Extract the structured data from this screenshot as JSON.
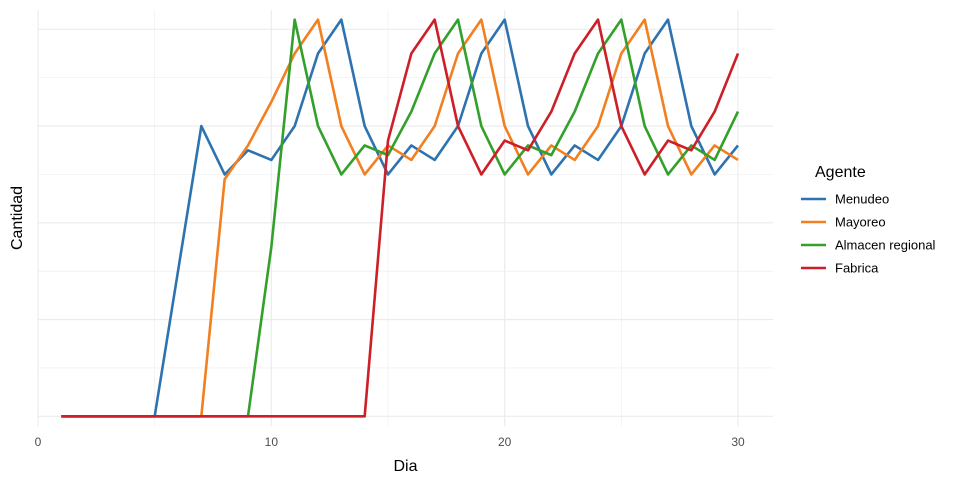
{
  "chart_data": {
    "type": "line",
    "title": "",
    "xlabel": "Dia",
    "ylabel": "Cantidad",
    "xlim": [
      0,
      31.5
    ],
    "ylim": [
      -0.2,
      8.4
    ],
    "x_ticks": [
      0,
      10,
      20,
      30
    ],
    "x_minor_ticks": [
      5,
      15,
      25
    ],
    "y_major_grid": [
      0,
      2,
      4,
      6,
      8
    ],
    "y_minor_grid": [
      1,
      3,
      5,
      7
    ],
    "y_tick_labels_shown": false,
    "grid": true,
    "legend": {
      "title": "Agente",
      "position": "right"
    },
    "x": [
      1,
      2,
      3,
      4,
      5,
      6,
      7,
      8,
      9,
      10,
      11,
      12,
      13,
      14,
      15,
      16,
      17,
      18,
      19,
      20,
      21,
      22,
      23,
      24,
      25,
      26,
      27,
      28,
      29,
      30
    ],
    "series": [
      {
        "name": "Menudeo",
        "color": "#2e73b0",
        "values": [
          0,
          0,
          0,
          0,
          0,
          3,
          6,
          5,
          5.5,
          5.3,
          6,
          7.5,
          8.2,
          6,
          5,
          5.6,
          5.3,
          6,
          7.5,
          8.2,
          6,
          5,
          5.6,
          5.3,
          6,
          7.5,
          8.2,
          6,
          5,
          5.6
        ]
      },
      {
        "name": "Mayoreo",
        "color": "#f27f20",
        "values": [
          0,
          0,
          0,
          0,
          0,
          0,
          0,
          4.9,
          5.6,
          6.5,
          7.5,
          8.2,
          6,
          5,
          5.6,
          5.3,
          6,
          7.5,
          8.2,
          6,
          5,
          5.6,
          5.3,
          6,
          7.5,
          8.2,
          6,
          5,
          5.6,
          5.3
        ]
      },
      {
        "name": "Almacen regional",
        "color": "#33a02c",
        "values": [
          0,
          0,
          0,
          0,
          0,
          0,
          0,
          0,
          0,
          3.5,
          8.2,
          6,
          5,
          5.6,
          5.4,
          6.3,
          7.5,
          8.2,
          6,
          5,
          5.6,
          5.4,
          6.3,
          7.5,
          8.2,
          6,
          5,
          5.6,
          5.3,
          6.3
        ]
      },
      {
        "name": "Fabrica",
        "color": "#cd1f27",
        "values": [
          0,
          0,
          0,
          0,
          0,
          0,
          0,
          0,
          0,
          0,
          0,
          0,
          0,
          0,
          5.7,
          7.5,
          8.2,
          6,
          5,
          5.7,
          5.5,
          6.3,
          7.5,
          8.2,
          6,
          5,
          5.7,
          5.5,
          6.3,
          7.5
        ]
      }
    ]
  }
}
